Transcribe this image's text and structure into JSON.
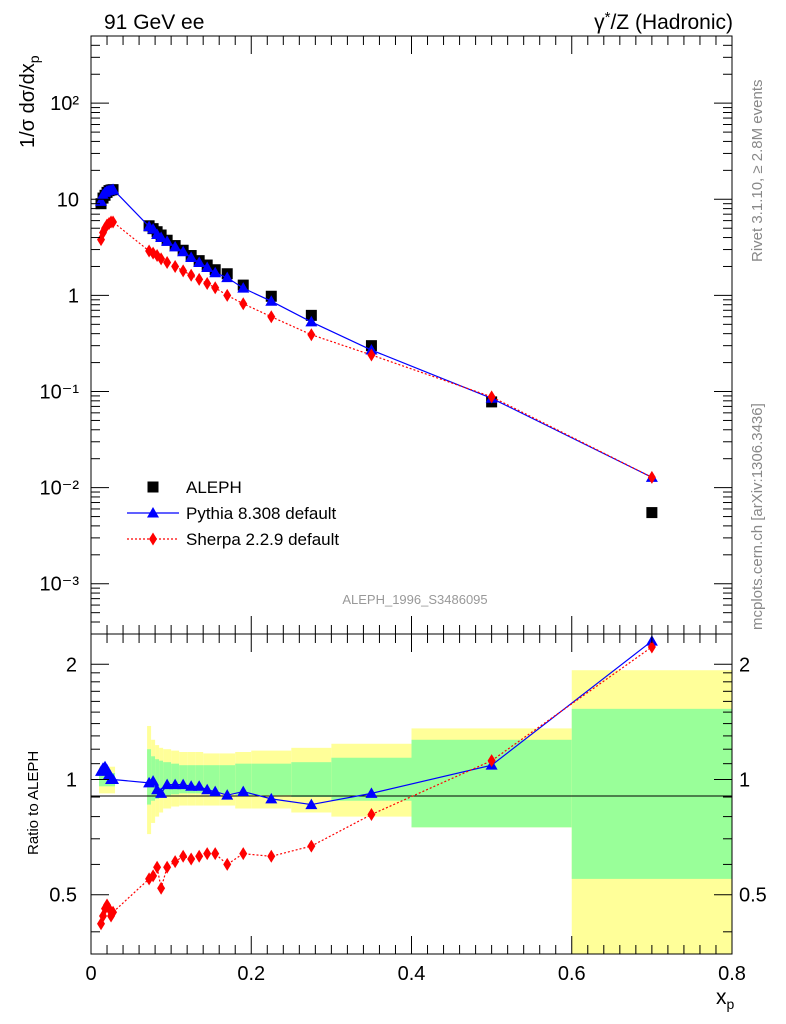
{
  "header": {
    "left": "91 GeV ee",
    "right_prefix": "γ",
    "right_sup": "*",
    "right_suffix": "/Z (Hadronic)"
  },
  "side": {
    "rivet": "Rivet 3.1.10, ≥ 2.8M events",
    "mcplots": "mcplots.cern.ch [arXiv:1306.3436]"
  },
  "analysis_label": "ALEPH_1996_S3486095",
  "axes": {
    "ylabel_top": "1/σ dσ/dx",
    "ylabel_top_sub": "p",
    "ylabel_bottom": "Ratio to ALEPH",
    "xlabel": "x",
    "xlabel_sub": "p"
  },
  "legend": [
    {
      "name": "ALEPH",
      "color": "#000000",
      "marker": "square"
    },
    {
      "name": "Pythia 8.308 default",
      "color": "#0000ff",
      "marker": "triangle"
    },
    {
      "name": "Sherpa 2.2.9 default",
      "color": "#ff0000",
      "marker": "diamond"
    }
  ],
  "colors": {
    "aleph": "#000000",
    "pythia": "#0000ff",
    "sherpa": "#ff0000",
    "band_inner": "#99ff99",
    "band_outer": "#ffff99"
  },
  "chart_data": [
    {
      "type": "scatter",
      "panel": "main",
      "xlim": [
        0,
        0.8
      ],
      "ylim": [
        0.0003,
        500
      ],
      "yscale": "log",
      "ytick_labels": [
        "10⁻³",
        "10⁻²",
        "10⁻¹",
        "1",
        "10",
        "10²"
      ],
      "series": [
        {
          "name": "ALEPH",
          "x": [
            0.0125,
            0.015,
            0.0175,
            0.02,
            0.0225,
            0.025,
            0.0275,
            0.0725,
            0.0775,
            0.0825,
            0.0875,
            0.095,
            0.105,
            0.115,
            0.125,
            0.135,
            0.145,
            0.155,
            0.17,
            0.19,
            0.225,
            0.275,
            0.35,
            0.5,
            0.7
          ],
          "y": [
            9.0,
            10.3,
            11.0,
            11.8,
            12.3,
            12.5,
            12.6,
            5.3,
            4.95,
            4.6,
            4.25,
            3.75,
            3.3,
            2.95,
            2.6,
            2.3,
            2.07,
            1.85,
            1.68,
            1.28,
            0.98,
            0.62,
            0.3,
            0.078,
            0.0055
          ]
        },
        {
          "name": "Pythia 8.308 default",
          "x": [
            0.0125,
            0.015,
            0.0175,
            0.02,
            0.0225,
            0.025,
            0.0275,
            0.0725,
            0.0775,
            0.0825,
            0.0875,
            0.095,
            0.105,
            0.115,
            0.125,
            0.135,
            0.145,
            0.155,
            0.17,
            0.19,
            0.225,
            0.275,
            0.35,
            0.5,
            0.7
          ],
          "y": [
            9.5,
            11.1,
            11.8,
            12.2,
            12.4,
            12.5,
            12.7,
            5.2,
            4.9,
            4.3,
            4.0,
            3.65,
            3.2,
            2.85,
            2.48,
            2.2,
            1.95,
            1.72,
            1.53,
            1.19,
            0.87,
            0.53,
            0.27,
            0.085,
            0.0128
          ]
        },
        {
          "name": "Sherpa 2.2.9 default",
          "x": [
            0.0125,
            0.015,
            0.0175,
            0.02,
            0.0225,
            0.025,
            0.0275,
            0.0725,
            0.0775,
            0.0825,
            0.0875,
            0.095,
            0.105,
            0.115,
            0.125,
            0.135,
            0.145,
            0.155,
            0.17,
            0.19,
            0.225,
            0.275,
            0.35,
            0.5,
            0.7
          ],
          "y": [
            3.8,
            4.5,
            5.0,
            5.4,
            5.6,
            5.8,
            5.8,
            2.9,
            2.75,
            2.6,
            2.4,
            2.2,
            2.0,
            1.8,
            1.62,
            1.47,
            1.33,
            1.2,
            1.0,
            0.82,
            0.6,
            0.39,
            0.24,
            0.088,
            0.0128
          ]
        }
      ]
    },
    {
      "type": "line",
      "panel": "ratio",
      "xlim": [
        0,
        0.8
      ],
      "ylim": [
        0.35,
        2.4
      ],
      "yscale": "log",
      "ytick_labels": [
        "0.5",
        "1",
        "2"
      ],
      "xtick_labels": [
        "0",
        "0.2",
        "0.4",
        "0.6",
        "0.8"
      ],
      "bands": {
        "bins": [
          [
            0.01,
            0.03,
            0.96,
            1.04,
            0.92,
            1.08
          ],
          [
            0.07,
            0.075,
            0.86,
            1.2,
            0.72,
            1.38
          ],
          [
            0.075,
            0.08,
            0.88,
            1.15,
            0.77,
            1.27
          ],
          [
            0.08,
            0.085,
            0.89,
            1.13,
            0.8,
            1.23
          ],
          [
            0.085,
            0.09,
            0.9,
            1.12,
            0.82,
            1.21
          ],
          [
            0.09,
            0.1,
            0.91,
            1.11,
            0.84,
            1.2
          ],
          [
            0.1,
            0.11,
            0.915,
            1.1,
            0.85,
            1.19
          ],
          [
            0.11,
            0.12,
            0.92,
            1.09,
            0.855,
            1.18
          ],
          [
            0.12,
            0.13,
            0.92,
            1.09,
            0.855,
            1.18
          ],
          [
            0.13,
            0.14,
            0.92,
            1.09,
            0.855,
            1.18
          ],
          [
            0.14,
            0.16,
            0.92,
            1.09,
            0.855,
            1.17
          ],
          [
            0.16,
            0.18,
            0.92,
            1.09,
            0.855,
            1.17
          ],
          [
            0.18,
            0.2,
            0.91,
            1.1,
            0.84,
            1.18
          ],
          [
            0.2,
            0.25,
            0.91,
            1.1,
            0.84,
            1.19
          ],
          [
            0.25,
            0.3,
            0.9,
            1.11,
            0.82,
            1.21
          ],
          [
            0.3,
            0.4,
            0.88,
            1.14,
            0.8,
            1.24
          ],
          [
            0.4,
            0.6,
            0.75,
            1.27,
            0.75,
            1.36
          ],
          [
            0.6,
            0.8,
            0.55,
            1.53,
            0.35,
            1.93
          ]
        ]
      },
      "series": [
        {
          "name": "Pythia 8.308 default",
          "x": [
            0.0125,
            0.015,
            0.0175,
            0.02,
            0.0225,
            0.025,
            0.0275,
            0.0725,
            0.0775,
            0.0825,
            0.0875,
            0.095,
            0.105,
            0.115,
            0.125,
            0.135,
            0.145,
            0.155,
            0.17,
            0.19,
            0.225,
            0.275,
            0.35,
            0.5,
            0.7
          ],
          "y": [
            1.05,
            1.07,
            1.08,
            1.06,
            1.03,
            1.0,
            1.0,
            0.98,
            0.99,
            0.94,
            0.92,
            0.97,
            0.97,
            0.97,
            0.96,
            0.96,
            0.94,
            0.93,
            0.91,
            0.93,
            0.89,
            0.86,
            0.92,
            1.09,
            2.3
          ]
        },
        {
          "name": "Sherpa 2.2.9 default",
          "x": [
            0.0125,
            0.015,
            0.0175,
            0.02,
            0.0225,
            0.025,
            0.0275,
            0.0725,
            0.0775,
            0.0825,
            0.0875,
            0.095,
            0.105,
            0.115,
            0.125,
            0.135,
            0.145,
            0.155,
            0.17,
            0.19,
            0.225,
            0.275,
            0.35,
            0.5,
            0.7
          ],
          "y": [
            0.42,
            0.44,
            0.46,
            0.47,
            0.46,
            0.44,
            0.45,
            0.55,
            0.56,
            0.59,
            0.52,
            0.59,
            0.61,
            0.63,
            0.62,
            0.63,
            0.64,
            0.64,
            0.6,
            0.64,
            0.63,
            0.67,
            0.81,
            1.12,
            2.22
          ]
        }
      ]
    }
  ]
}
